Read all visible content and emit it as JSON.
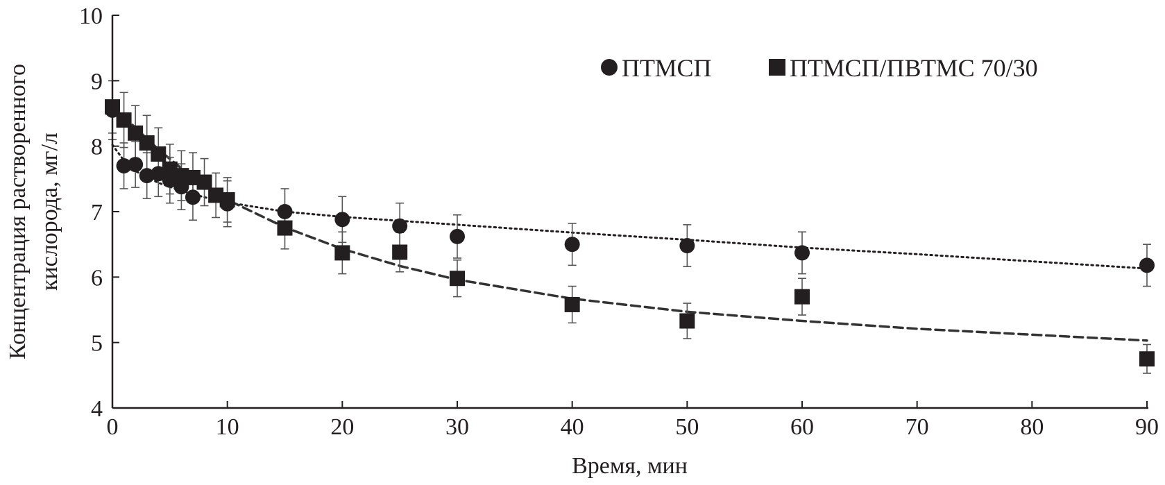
{
  "chart_data": {
    "type": "scatter",
    "xlabel": "Время, мин",
    "ylabel_lines": [
      "Концентрация растворенного",
      "кислорода, мг/л"
    ],
    "xlim": [
      0,
      90
    ],
    "ylim": [
      4,
      10
    ],
    "x_ticks": [
      0,
      10,
      20,
      30,
      40,
      50,
      60,
      70,
      80,
      90
    ],
    "y_ticks": [
      4,
      5,
      6,
      7,
      8,
      9,
      10
    ],
    "grid": false,
    "legend_position": "top-right",
    "series": [
      {
        "name": "ПТМСП",
        "marker": "circle",
        "color": "#231f20",
        "trend_style": "dotted",
        "points": [
          {
            "x": 0,
            "y": 8.55,
            "err": 0.45
          },
          {
            "x": 1,
            "y": 7.7,
            "err": 0.35
          },
          {
            "x": 2,
            "y": 7.72,
            "err": 0.35
          },
          {
            "x": 3,
            "y": 7.55,
            "err": 0.35
          },
          {
            "x": 4,
            "y": 7.58,
            "err": 0.35
          },
          {
            "x": 5,
            "y": 7.48,
            "err": 0.35
          },
          {
            "x": 6,
            "y": 7.38,
            "err": 0.35
          },
          {
            "x": 7,
            "y": 7.22,
            "err": 0.35
          },
          {
            "x": 10,
            "y": 7.12,
            "err": 0.35
          },
          {
            "x": 15,
            "y": 7.0,
            "err": 0.35
          },
          {
            "x": 20,
            "y": 6.88,
            "err": 0.35
          },
          {
            "x": 25,
            "y": 6.78,
            "err": 0.35
          },
          {
            "x": 30,
            "y": 6.62,
            "err": 0.33
          },
          {
            "x": 40,
            "y": 6.5,
            "err": 0.32
          },
          {
            "x": 50,
            "y": 6.48,
            "err": 0.32
          },
          {
            "x": 60,
            "y": 6.37,
            "err": 0.32
          },
          {
            "x": 90,
            "y": 6.18,
            "err": 0.32
          }
        ],
        "trend": {
          "x": [
            0,
            1,
            2,
            4,
            6,
            8,
            10,
            15,
            20,
            30,
            40,
            50,
            60,
            70,
            80,
            90
          ],
          "y": [
            8.02,
            7.78,
            7.62,
            7.44,
            7.32,
            7.22,
            7.14,
            7.0,
            6.92,
            6.8,
            6.68,
            6.57,
            6.45,
            6.35,
            6.24,
            6.13
          ]
        }
      },
      {
        "name": "ПТМСП/ПВТМС 70/30",
        "marker": "square",
        "color": "#231f20",
        "trend_style": "dashed",
        "points": [
          {
            "x": 0,
            "y": 8.6,
            "err": 0.4
          },
          {
            "x": 1,
            "y": 8.4,
            "err": 0.42
          },
          {
            "x": 2,
            "y": 8.2,
            "err": 0.42
          },
          {
            "x": 3,
            "y": 8.05,
            "err": 0.42
          },
          {
            "x": 4,
            "y": 7.88,
            "err": 0.4
          },
          {
            "x": 5,
            "y": 7.65,
            "err": 0.38
          },
          {
            "x": 6,
            "y": 7.55,
            "err": 0.38
          },
          {
            "x": 7,
            "y": 7.52,
            "err": 0.38
          },
          {
            "x": 8,
            "y": 7.45,
            "err": 0.36
          },
          {
            "x": 9,
            "y": 7.25,
            "err": 0.34
          },
          {
            "x": 10,
            "y": 7.18,
            "err": 0.34
          },
          {
            "x": 15,
            "y": 6.75,
            "err": 0.32
          },
          {
            "x": 20,
            "y": 6.37,
            "err": 0.32
          },
          {
            "x": 25,
            "y": 6.38,
            "err": 0.3
          },
          {
            "x": 30,
            "y": 5.98,
            "err": 0.28
          },
          {
            "x": 40,
            "y": 5.58,
            "err": 0.28
          },
          {
            "x": 50,
            "y": 5.33,
            "err": 0.27
          },
          {
            "x": 60,
            "y": 5.7,
            "err": 0.28
          },
          {
            "x": 90,
            "y": 4.75,
            "err": 0.22
          }
        ],
        "trend": {
          "x": [
            0,
            2,
            4,
            6,
            8,
            10,
            15,
            20,
            25,
            30,
            40,
            50,
            60,
            70,
            80,
            90
          ],
          "y": [
            8.62,
            8.28,
            7.95,
            7.66,
            7.4,
            7.18,
            6.76,
            6.43,
            6.17,
            5.96,
            5.67,
            5.47,
            5.33,
            5.21,
            5.12,
            5.03
          ]
        }
      }
    ]
  }
}
